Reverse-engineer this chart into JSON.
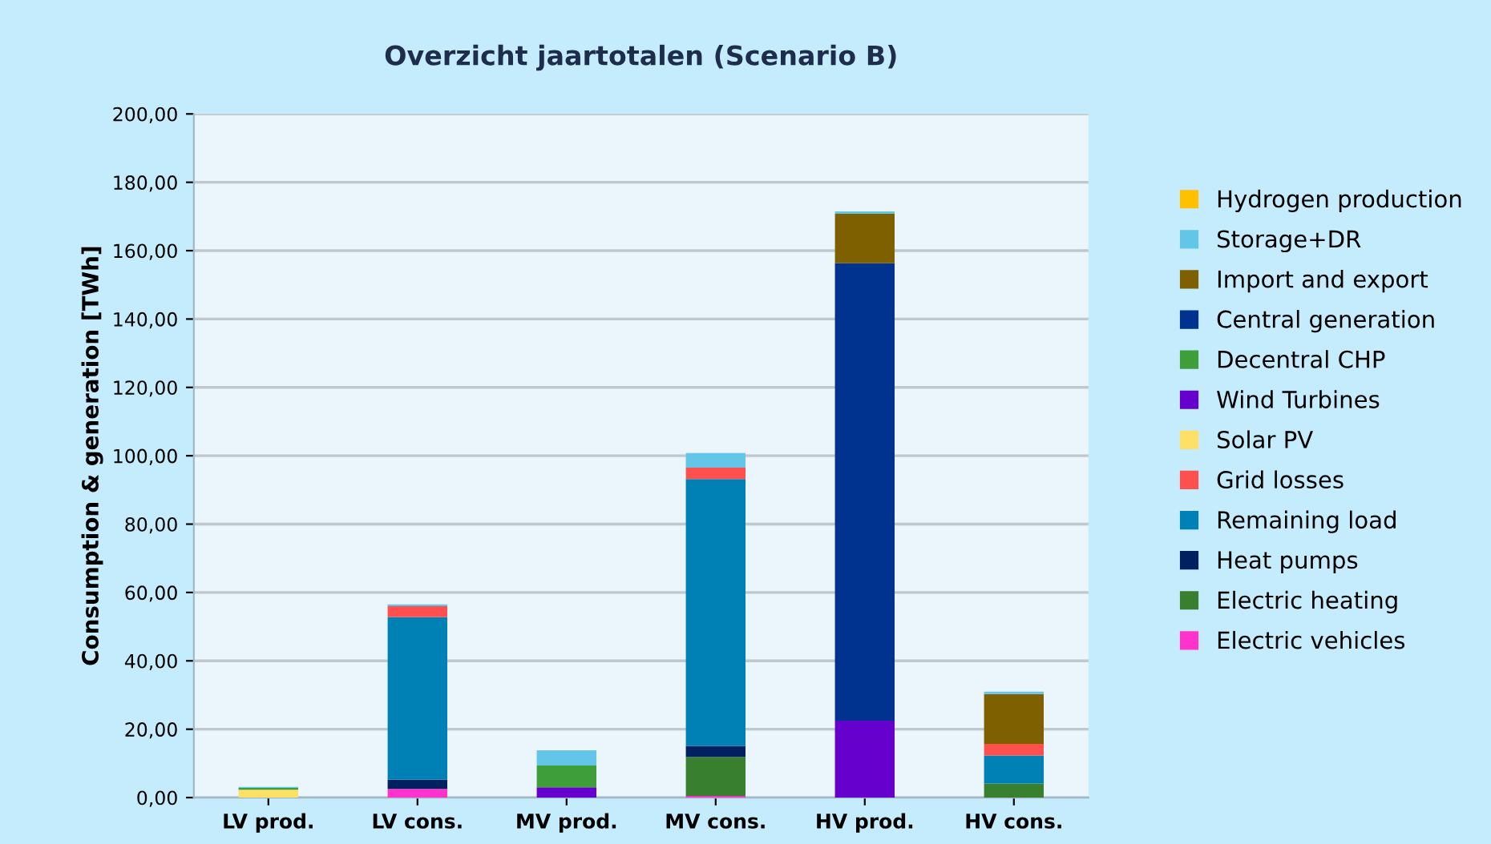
{
  "chart_data": {
    "type": "bar",
    "stacked": true,
    "title": "Overzicht jaartotalen (Scenario B)",
    "ylabel": "Consumption & generation [TWh]",
    "categories": [
      "LV prod.",
      "LV cons.",
      "MV prod.",
      "MV cons.",
      "HV prod.",
      "HV cons."
    ],
    "series": [
      {
        "name": "Electric vehicles",
        "color": "#ff33cc",
        "values": [
          0,
          2.5,
          0,
          0.5,
          0,
          0
        ]
      },
      {
        "name": "Electric heating",
        "color": "#388030",
        "values": [
          0,
          0,
          0,
          11.4,
          0,
          4.1
        ]
      },
      {
        "name": "Heat pumps",
        "color": "#002060",
        "values": [
          0,
          2.8,
          0,
          3.2,
          0,
          0
        ]
      },
      {
        "name": "Remaining load",
        "color": "#0081b5",
        "values": [
          0,
          47.5,
          0,
          78.1,
          0,
          8.2
        ]
      },
      {
        "name": "Grid losses",
        "color": "#ff5050",
        "values": [
          0,
          3.2,
          0,
          3.3,
          0,
          3.4
        ]
      },
      {
        "name": "Solar PV",
        "color": "#ffe066",
        "values": [
          2.3,
          0,
          0,
          0,
          0,
          0
        ]
      },
      {
        "name": "Wind Turbines",
        "color": "#6600cc",
        "values": [
          0,
          0,
          3.0,
          0,
          22.5,
          0
        ]
      },
      {
        "name": "Decentral CHP",
        "color": "#3e9e3a",
        "values": [
          0.5,
          0,
          6.4,
          0,
          0,
          0
        ]
      },
      {
        "name": "Central generation",
        "color": "#003390",
        "values": [
          0,
          0,
          0,
          0,
          133.8,
          0
        ]
      },
      {
        "name": "Import and export",
        "color": "#7f6000",
        "values": [
          0,
          0,
          0,
          0,
          14.5,
          14.6
        ]
      },
      {
        "name": "Storage+DR",
        "color": "#63c5e8",
        "values": [
          0.3,
          0.5,
          4.4,
          4.3,
          0.7,
          0.7
        ]
      },
      {
        "name": "Hydrogen production",
        "color": "#ffc000",
        "values": [
          0,
          0,
          0,
          0,
          0,
          0
        ]
      }
    ],
    "ylim": [
      0,
      200
    ],
    "yticks": [
      {
        "value": 0,
        "label": "0,00"
      },
      {
        "value": 20,
        "label": "20,00"
      },
      {
        "value": 40,
        "label": "40,00"
      },
      {
        "value": 60,
        "label": "60,00"
      },
      {
        "value": 80,
        "label": "80,00"
      },
      {
        "value": 100,
        "label": "100,00"
      },
      {
        "value": 120,
        "label": "120,00"
      },
      {
        "value": 140,
        "label": "140,00"
      },
      {
        "value": 160,
        "label": "160,00"
      },
      {
        "value": 180,
        "label": "180,00"
      },
      {
        "value": 200,
        "label": "200,00"
      }
    ],
    "grid": "y",
    "legend": "right"
  }
}
